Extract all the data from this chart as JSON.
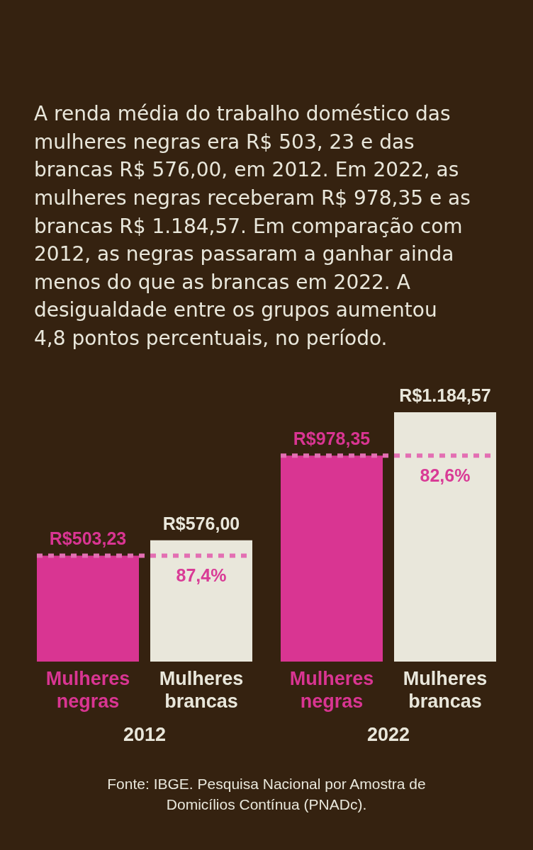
{
  "chart_data": {
    "type": "bar",
    "title": "A renda média do trabalho doméstico das mulheres negras era R$ 503, 23 e das brancas R$ 576,00, em 2012. Em 2022, as mulheres negras receberam R$ 978,35 e as brancas R$ 1.184,57. Em comparação com 2012, as negras passaram a ganhar ainda menos do que as brancas em 2022. A desigualdade entre os grupos aumentou 4,8 pontos percentuais, no período.",
    "categories": [
      "2012",
      "2022"
    ],
    "series": [
      {
        "name": "Mulheres negras",
        "color": "#d93592",
        "values": [
          503.23,
          978.35
        ],
        "value_labels": [
          "R$503,23",
          "R$978,35"
        ]
      },
      {
        "name": "Mulheres brancas",
        "color": "#e9e7db",
        "values": [
          576.0,
          1184.57
        ],
        "value_labels": [
          "R$576,00",
          "R$1.184,57"
        ]
      }
    ],
    "ref_lines": [
      {
        "axis": "y",
        "value": 503.23,
        "color": "#e36fb3",
        "line_style": "dashed"
      },
      {
        "axis": "y",
        "value": 978.35,
        "color": "#e36fb3",
        "line_style": "dashed"
      }
    ],
    "annotations": [
      {
        "text": "87,4%",
        "x": "2012",
        "y": 503.23
      },
      {
        "text": "82,6%",
        "x": "2022",
        "y": 978.35
      },
      "Fonte: IBGE. Pesquisa Nacional por Amostra de Domicílios Contínua (PNADc)."
    ]
  }
}
